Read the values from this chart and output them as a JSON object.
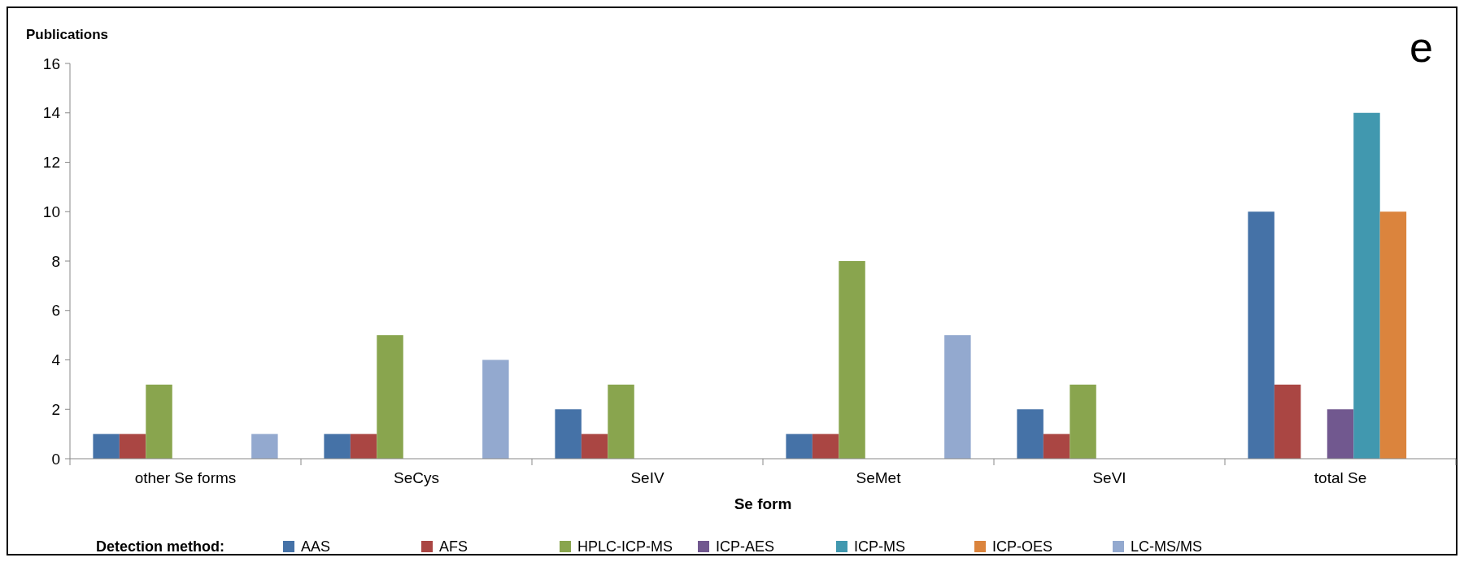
{
  "chart_data": {
    "type": "bar",
    "ylabel": "Publications",
    "xlabel": "Se form",
    "legend_title": "Detection method:",
    "annotations": [
      "e"
    ],
    "categories": [
      "other Se forms",
      "SeCys",
      "SeIV",
      "SeMet",
      "SeVI",
      "total Se"
    ],
    "series": [
      {
        "name": "AAS",
        "color": "#4572a7",
        "values": [
          1,
          1,
          2,
          1,
          2,
          10
        ]
      },
      {
        "name": "AFS",
        "color": "#aa4643",
        "values": [
          1,
          1,
          1,
          1,
          1,
          3
        ]
      },
      {
        "name": "HPLC-ICP-MS",
        "color": "#89a54e",
        "values": [
          3,
          5,
          3,
          8,
          3,
          null
        ]
      },
      {
        "name": "ICP-AES",
        "color": "#71588f",
        "values": [
          null,
          null,
          null,
          null,
          null,
          2
        ]
      },
      {
        "name": "ICP-MS",
        "color": "#4198af",
        "values": [
          null,
          null,
          null,
          null,
          null,
          14
        ]
      },
      {
        "name": "ICP-OES",
        "color": "#db843d",
        "values": [
          null,
          null,
          null,
          null,
          null,
          10
        ]
      },
      {
        "name": "LC-MS/MS",
        "color": "#93a9cf",
        "values": [
          1,
          4,
          null,
          5,
          null,
          null
        ]
      }
    ],
    "ylim": [
      0,
      16
    ],
    "yticks": [
      0,
      2,
      4,
      6,
      8,
      10,
      12,
      14,
      16
    ],
    "grid": false,
    "legend": "bottom"
  }
}
